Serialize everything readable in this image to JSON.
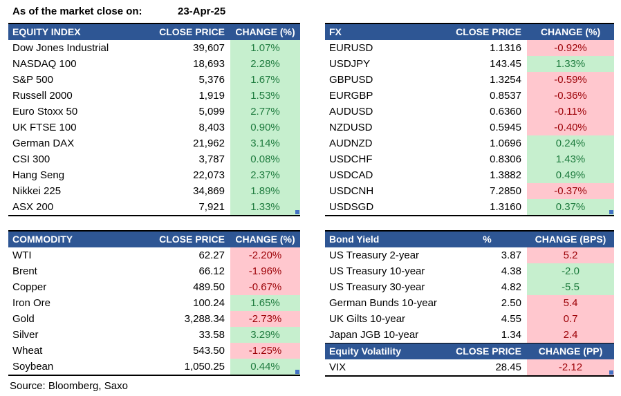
{
  "header": {
    "label": "As of the market close on:",
    "date": "23-Apr-25"
  },
  "source": "Source: Bloomberg, Saxo",
  "colors": {
    "header_bg": "#2E5694",
    "green_bg": "#C6EFCE",
    "green_text": "#1E7B3E",
    "red_bg": "#FFC7CE",
    "red_text": "#9C0006",
    "handle": "#4472C4",
    "marker": "#1E7B3E"
  },
  "tables": {
    "equity": {
      "columns": [
        "EQUITY INDEX",
        "CLOSE PRICE",
        "CHANGE (%)"
      ],
      "handle": true,
      "rows": [
        {
          "name": "Dow Jones Industrial",
          "price": "39,607",
          "change": "1.07%",
          "tone": "green"
        },
        {
          "name": "NASDAQ 100",
          "price": "18,693",
          "change": "2.28%",
          "tone": "green"
        },
        {
          "name": "S&P 500",
          "price": "5,376",
          "change": "1.67%",
          "tone": "green"
        },
        {
          "name": "Russell 2000",
          "price": "1,919",
          "change": "1.53%",
          "tone": "green"
        },
        {
          "name": "Euro Stoxx 50",
          "price": "5,099",
          "change": "2.77%",
          "tone": "green"
        },
        {
          "name": "UK FTSE 100",
          "price": "8,403",
          "change": "0.90%",
          "tone": "green"
        },
        {
          "name": "German DAX",
          "price": "21,962",
          "change": "3.14%",
          "tone": "green"
        },
        {
          "name": "CSI 300",
          "price": "3,787",
          "change": "0.08%",
          "tone": "green"
        },
        {
          "name": "Hang Seng",
          "price": "22,073",
          "change": "2.37%",
          "tone": "green"
        },
        {
          "name": "Nikkei 225",
          "price": "34,869",
          "change": "1.89%",
          "tone": "green"
        },
        {
          "name": "ASX 200",
          "price": "7,921",
          "change": "1.33%",
          "tone": "green"
        }
      ]
    },
    "fx": {
      "columns": [
        "FX",
        "CLOSE PRICE",
        "CHANGE (%)"
      ],
      "handle": true,
      "rows": [
        {
          "name": "EURUSD",
          "price": "1.1316",
          "change": "-0.92%",
          "tone": "red"
        },
        {
          "name": "USDJPY",
          "price": "143.45",
          "change": "1.33%",
          "tone": "green"
        },
        {
          "name": "GBPUSD",
          "price": "1.3254",
          "change": "-0.59%",
          "tone": "red"
        },
        {
          "name": "EURGBP",
          "price": "0.8537",
          "change": "-0.36%",
          "tone": "red"
        },
        {
          "name": "AUDUSD",
          "price": "0.6360",
          "change": "-0.11%",
          "tone": "red"
        },
        {
          "name": "NZDUSD",
          "price": "0.5945",
          "change": "-0.40%",
          "tone": "red"
        },
        {
          "name": "AUDNZD",
          "price": "1.0696",
          "change": "0.24%",
          "tone": "green"
        },
        {
          "name": "USDCHF",
          "price": "0.8306",
          "change": "1.43%",
          "tone": "green"
        },
        {
          "name": "USDCAD",
          "price": "1.3882",
          "change": "0.49%",
          "tone": "green"
        },
        {
          "name": "USDCNH",
          "price": "7.2850",
          "change": "-0.37%",
          "tone": "red"
        },
        {
          "name": "USDSGD",
          "price": "1.3160",
          "change": "0.37%",
          "tone": "green"
        }
      ]
    },
    "commodity": {
      "columns": [
        "COMMODITY",
        "CLOSE PRICE",
        "CHANGE (%)"
      ],
      "handle": true,
      "rows": [
        {
          "name": "WTI",
          "price": "62.27",
          "change": "-2.20%",
          "tone": "red"
        },
        {
          "name": "Brent",
          "price": "66.12",
          "change": "-1.96%",
          "tone": "red"
        },
        {
          "name": "Copper",
          "price": "489.50",
          "change": "-0.67%",
          "tone": "red"
        },
        {
          "name": "Iron Ore",
          "price": "100.24",
          "change": "1.65%",
          "tone": "green"
        },
        {
          "name": "Gold",
          "price": "3,288.34",
          "change": "-2.73%",
          "tone": "red"
        },
        {
          "name": "Silver",
          "price": "33.58",
          "change": "3.29%",
          "tone": "green"
        },
        {
          "name": "Wheat",
          "price": "543.50",
          "change": "-1.25%",
          "tone": "red"
        },
        {
          "name": "Soybean",
          "price": "1,050.25",
          "change": "0.44%",
          "tone": "green"
        }
      ]
    },
    "bond": {
      "columns": [
        "Bond Yield",
        "%",
        "CHANGE (BPS)"
      ],
      "handle": false,
      "rows": [
        {
          "name": "US Treasury 2-year",
          "price": "3.87",
          "change": "5.2",
          "tone": "red"
        },
        {
          "name": "US Treasury 10-year",
          "price": "4.38",
          "change": "-2.0",
          "tone": "green"
        },
        {
          "name": "US Treasury 30-year",
          "price": "4.82",
          "change": "-5.5",
          "tone": "green"
        },
        {
          "name": "German Bunds 10-year",
          "price": "2.50",
          "change": "5.4",
          "tone": "red"
        },
        {
          "name": "UK Gilts 10-year",
          "price": "4.55",
          "change": "0.7",
          "tone": "red"
        },
        {
          "name": "Japan JGB 10-year",
          "price": "1.34",
          "change": "2.4",
          "tone": "red"
        }
      ]
    },
    "volatility": {
      "columns": [
        "Equity Volatility",
        "CLOSE PRICE",
        "CHANGE (PP)"
      ],
      "handle": true,
      "header_markers": [
        1,
        2
      ],
      "rows": [
        {
          "name": "VIX",
          "price": "28.45",
          "change": "-2.12",
          "tone": "red",
          "marker": true
        }
      ]
    }
  }
}
